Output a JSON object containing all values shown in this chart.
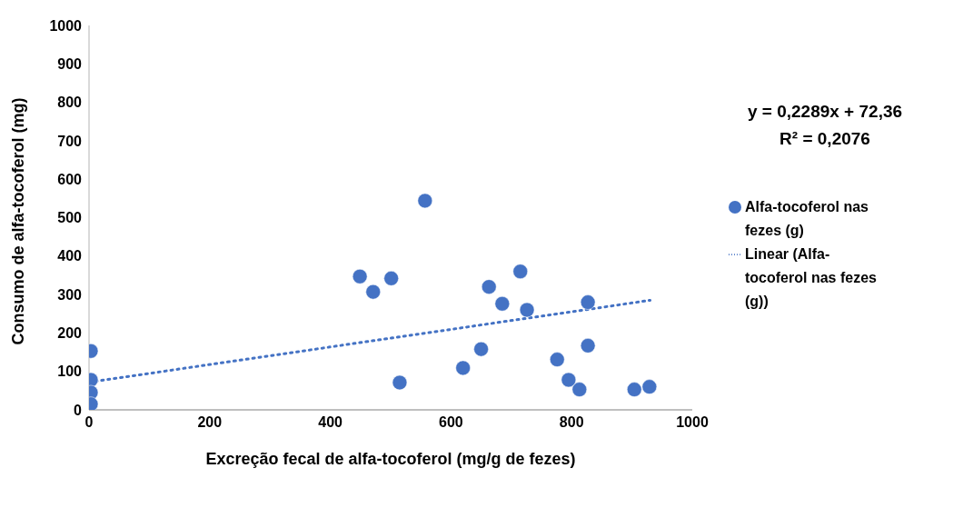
{
  "chart_data": {
    "type": "scatter",
    "xlabel": "Excreção fecal de alfa-tocoferol (mg/g de fezes)",
    "ylabel": "Consumo de alfa-tocoferol (mg)",
    "xlim": [
      0,
      1000
    ],
    "xticks": [
      0,
      200,
      400,
      600,
      800,
      1000
    ],
    "ylim": [
      0,
      1000
    ],
    "yticks": [
      0,
      100,
      200,
      300,
      400,
      500,
      600,
      700,
      800,
      900,
      1000
    ],
    "grid": false,
    "legend": "right",
    "marker": "circle",
    "annotations": [
      "y = 0,2289x + 72,36",
      "R² = 0,2076"
    ],
    "series": [
      {
        "name": "Alfa-tocoferol nas fezes (g)",
        "color": "#4472c4",
        "x": [
          3,
          3,
          3,
          3,
          449,
          471,
          501,
          515,
          557,
          620,
          650,
          663,
          685,
          715,
          726,
          776,
          795,
          813,
          827,
          827,
          904,
          929
        ],
        "values": [
          153,
          78,
          45,
          15,
          347,
          307,
          342,
          71,
          544,
          109,
          158,
          320,
          276,
          360,
          260,
          131,
          78,
          53,
          280,
          167,
          53,
          60
        ]
      },
      {
        "name": "Linear (Alfa-tocoferol nas fezes (g))",
        "color": "#4472c4",
        "type": "line",
        "line_style": "dotted",
        "marker": "none",
        "x": [
          0,
          930
        ],
        "values": [
          72,
          285
        ]
      }
    ]
  }
}
